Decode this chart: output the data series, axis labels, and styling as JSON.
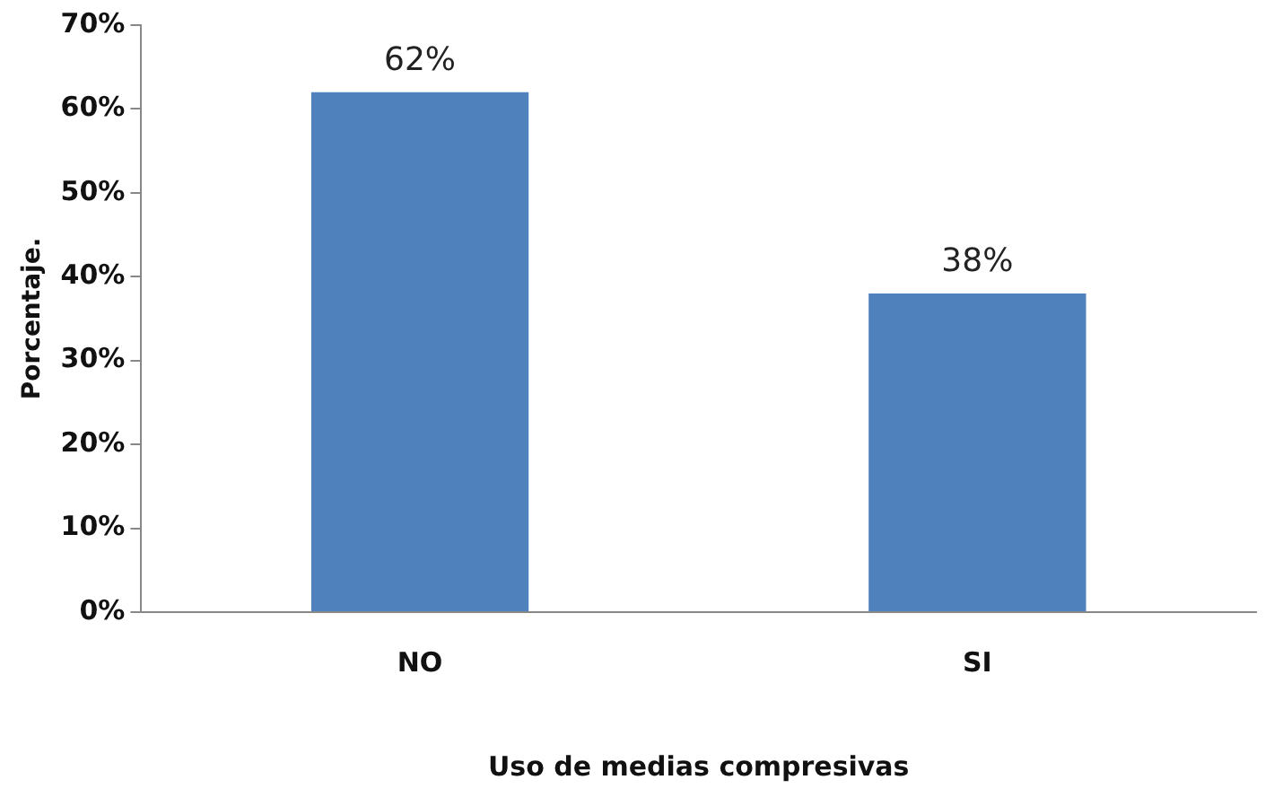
{
  "chart_data": {
    "type": "bar",
    "xlabel": "Uso de medias compresivas",
    "ylabel": "Porcentaje.",
    "categories": [
      "NO",
      "SI"
    ],
    "values": [
      62,
      38
    ],
    "color": "#4f81bd",
    "value_labels": [
      "62%",
      "38%"
    ],
    "ylim": [
      0,
      70
    ],
    "yticks": [
      {
        "value": 0,
        "label": "0%"
      },
      {
        "value": 10,
        "label": "10%"
      },
      {
        "value": 20,
        "label": "20%"
      },
      {
        "value": 30,
        "label": "30%"
      },
      {
        "value": 40,
        "label": "40%"
      },
      {
        "value": 50,
        "label": "50%"
      },
      {
        "value": 60,
        "label": "60%"
      },
      {
        "value": 70,
        "label": "70%"
      }
    ],
    "grid": false,
    "legend": false
  }
}
